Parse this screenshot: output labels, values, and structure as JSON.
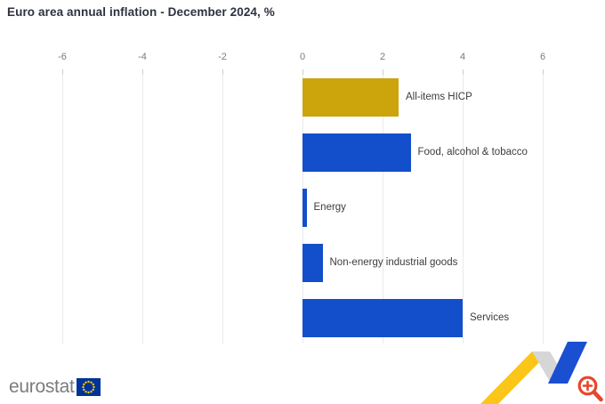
{
  "title": "Euro area annual inflation - December 2024, %",
  "chart_data": {
    "type": "bar",
    "orientation": "horizontal",
    "title": "Euro area annual inflation - December 2024, %",
    "categories": [
      "All-items HICP",
      "Food, alcohol & tobacco",
      "Energy",
      "Non-energy industrial goods",
      "Services"
    ],
    "values": [
      2.4,
      2.7,
      0.1,
      0.5,
      4.0
    ],
    "bar_colors": [
      "#CCA40C",
      "#134FCB",
      "#134FCB",
      "#134FCB",
      "#134FCB"
    ],
    "xlabel": "",
    "ylabel": "",
    "xlim": [
      -6,
      6
    ],
    "x_ticks": [
      -6,
      -4,
      -2,
      0,
      2,
      4,
      6
    ],
    "grid": true,
    "legend": "none",
    "category_labels_position": "right-of-bar",
    "value_axis_position": "top"
  },
  "footer": {
    "logo_text": "eurostat"
  },
  "decoration": {
    "ribbon_yellow": "#FBC51A",
    "ribbon_gray": "#D6D6D6",
    "ribbon_blue": "#1B4FD1",
    "zoom_icon_color": "#E8462B",
    "eu_flag_blue": "#003399",
    "eu_flag_star": "#FFCC00"
  }
}
